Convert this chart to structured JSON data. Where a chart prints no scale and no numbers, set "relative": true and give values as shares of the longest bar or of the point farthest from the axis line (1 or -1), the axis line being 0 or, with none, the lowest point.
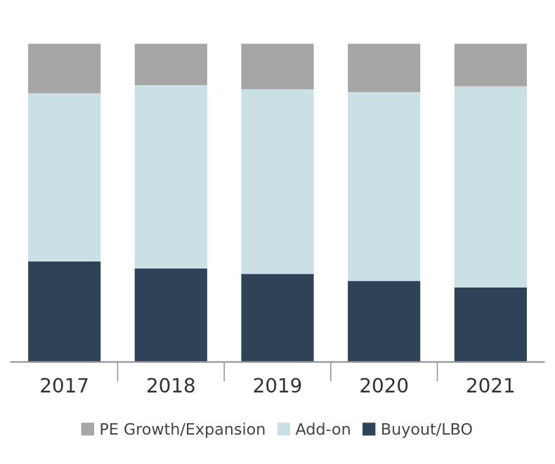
{
  "chart_data": {
    "type": "bar",
    "stacked": true,
    "relative": true,
    "categories": [
      "2017",
      "2018",
      "2019",
      "2020",
      "2021"
    ],
    "series": [
      {
        "name": "Buyout/LBO",
        "color": "#2e4357",
        "values": [
          0.316,
          0.294,
          0.277,
          0.255,
          0.234
        ]
      },
      {
        "name": "Add-on",
        "color": "#c9e0e4",
        "values": [
          0.528,
          0.576,
          0.58,
          0.593,
          0.632
        ]
      },
      {
        "name": "PE Growth/Expansion",
        "color": "#a6a6a6",
        "values": [
          0.156,
          0.13,
          0.143,
          0.152,
          0.134
        ]
      }
    ],
    "legend": "bottom",
    "grid": false
  }
}
